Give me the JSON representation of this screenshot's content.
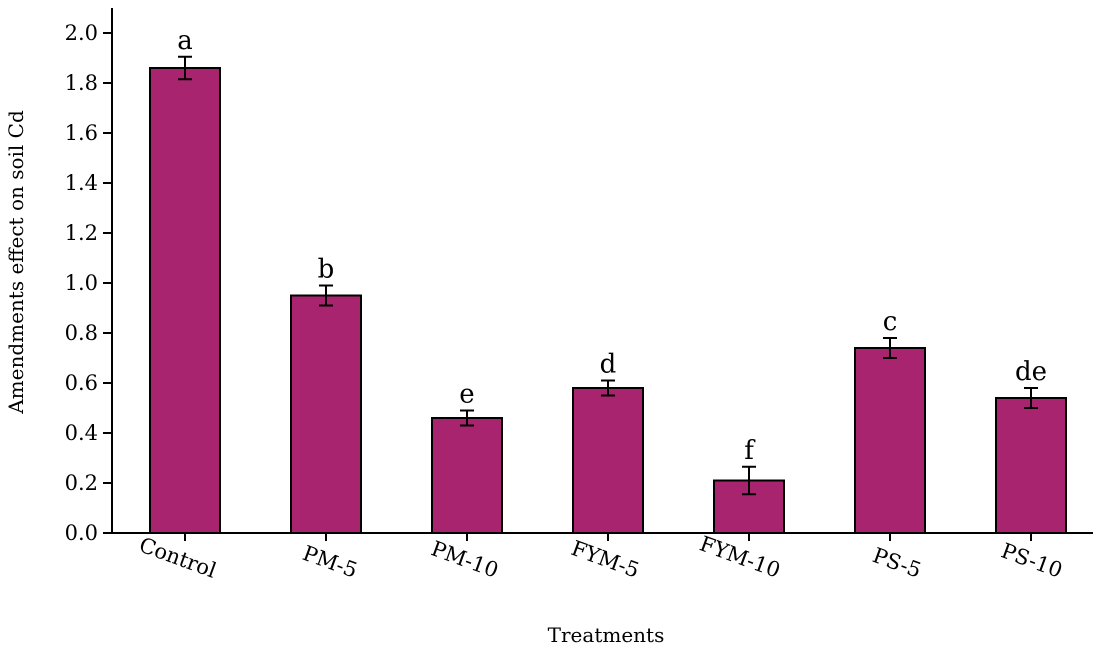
{
  "chart_data": {
    "type": "bar",
    "title": "",
    "xlabel": "Treatments",
    "ylabel": "Amendments effect on soil Cd",
    "categories": [
      "Control",
      "PM-5",
      "PM-10",
      "FYM-5",
      "FYM-10",
      "PS-5",
      "PS-10"
    ],
    "values": [
      1.86,
      0.95,
      0.46,
      0.58,
      0.21,
      0.74,
      0.54
    ],
    "errors": [
      0.045,
      0.04,
      0.03,
      0.03,
      0.055,
      0.04,
      0.04
    ],
    "significance": [
      "a",
      "b",
      "e",
      "d",
      "f",
      "c",
      "de"
    ],
    "ylim": [
      0,
      2.1
    ],
    "yticks": [
      "0.0",
      "0.2",
      "0.4",
      "0.6",
      "0.8",
      "1.0",
      "1.2",
      "1.4",
      "1.6",
      "1.8",
      "2.0"
    ],
    "bar_color": "#a8246e",
    "grid": false,
    "legend": "none"
  }
}
